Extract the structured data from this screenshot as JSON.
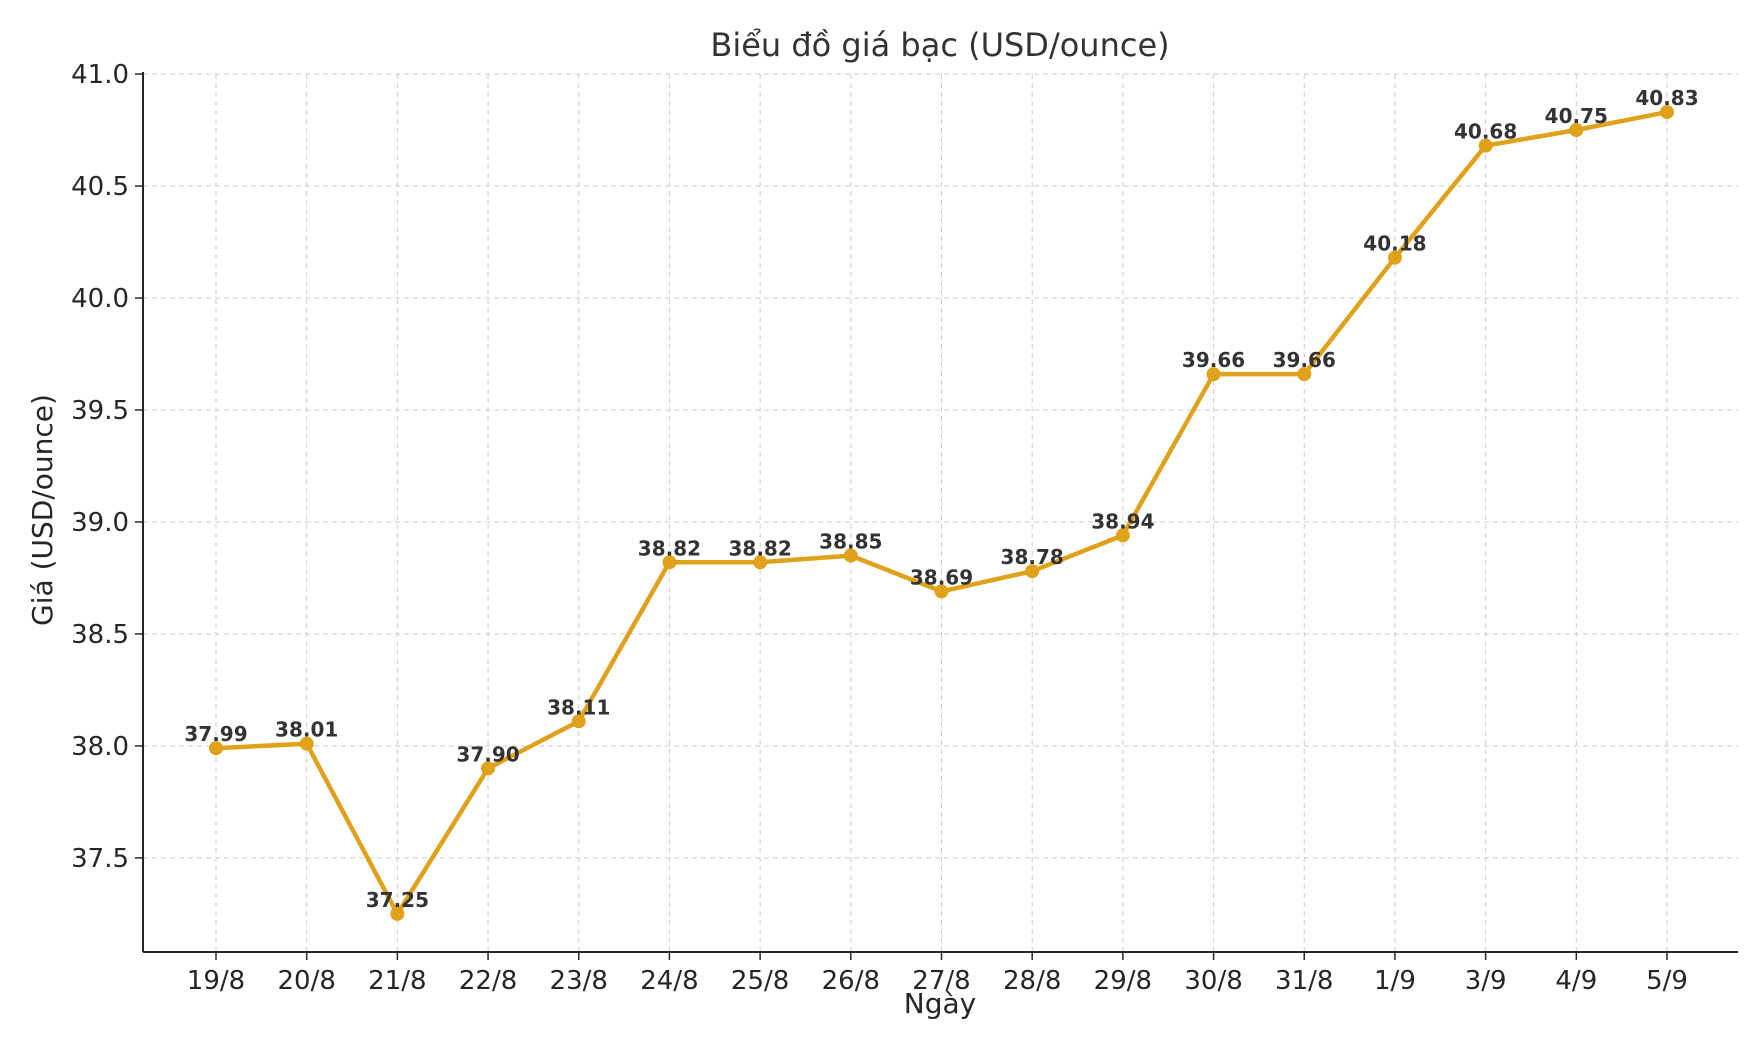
{
  "chart_data": {
    "type": "line",
    "title": "Biểu đồ giá bạc (USD/ounce)",
    "xlabel": "Ngày",
    "ylabel": "Giá (USD/ounce)",
    "categories": [
      "19/8",
      "20/8",
      "21/8",
      "22/8",
      "23/8",
      "24/8",
      "25/8",
      "26/8",
      "27/8",
      "28/8",
      "29/8",
      "30/8",
      "31/8",
      "1/9",
      "3/9",
      "4/9",
      "5/9"
    ],
    "values": [
      37.99,
      38.01,
      37.25,
      37.9,
      38.11,
      38.82,
      38.82,
      38.85,
      38.69,
      38.78,
      38.94,
      39.66,
      39.66,
      40.18,
      40.68,
      40.75,
      40.83
    ],
    "data_labels": [
      "37.99",
      "38.01",
      "37.25",
      "37.90",
      "38.11",
      "38.82",
      "38.82",
      "38.85",
      "38.69",
      "38.78",
      "38.94",
      "39.66",
      "39.66",
      "40.18",
      "40.68",
      "40.75",
      "40.83"
    ],
    "ylim": [
      37.08,
      41.0
    ],
    "yticks": [
      37.5,
      38.0,
      38.5,
      39.0,
      39.5,
      40.0,
      40.5,
      41.0
    ],
    "ytick_labels": [
      "37.5",
      "38.0",
      "38.5",
      "39.0",
      "39.5",
      "40.0",
      "40.5",
      "41.0"
    ],
    "grid": true,
    "legend": false,
    "line_color": "#E0A11B",
    "marker": "circle"
  }
}
